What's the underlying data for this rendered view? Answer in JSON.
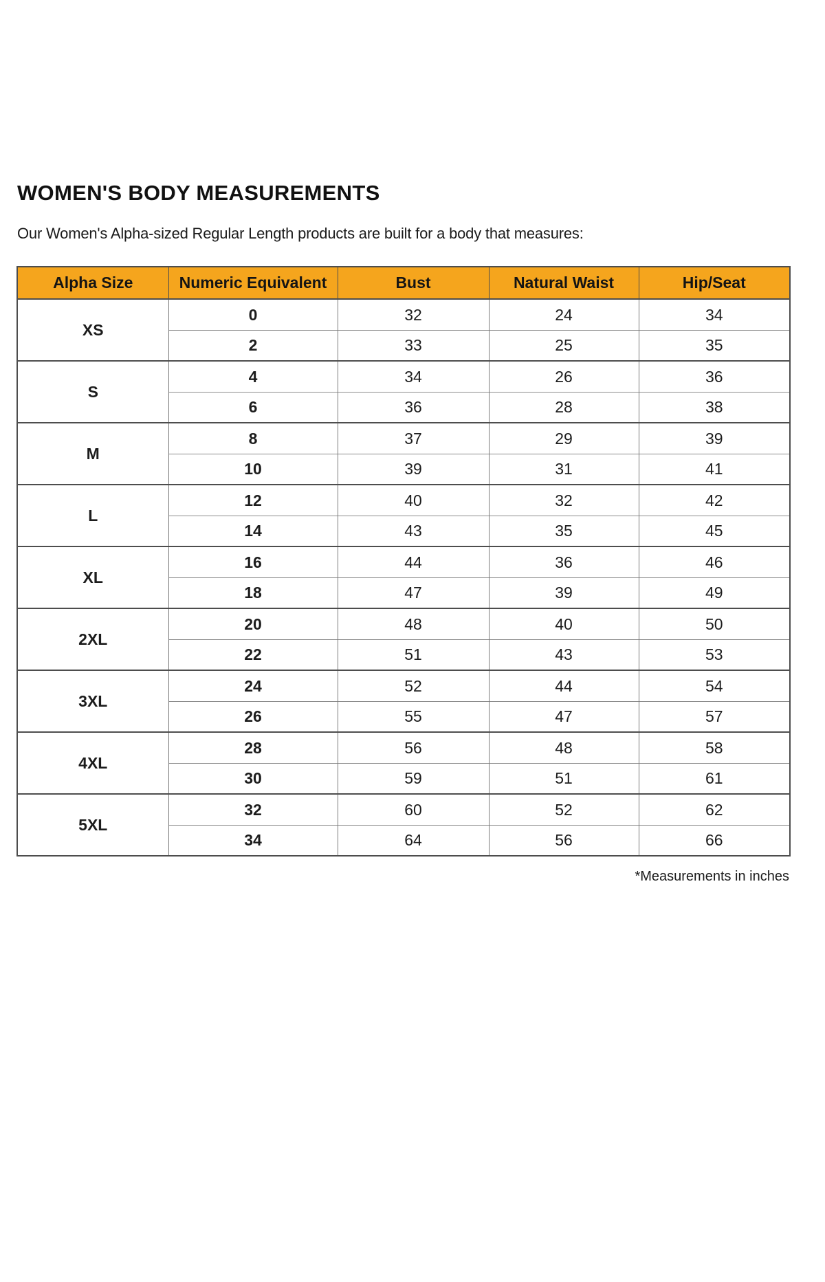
{
  "page": {
    "title": "WOMEN'S BODY MEASUREMENTS",
    "subtitle": "Our Women's Alpha-sized Regular Length products are built for a body that measures:",
    "footnote": "*Measurements in inches"
  },
  "colors": {
    "header_bg": "#F5A51D",
    "row_alt_bg": "#EFEFEF",
    "border_dark": "#4D4D4D",
    "border_light": "#8A8A8A",
    "text": "#1D1D1D"
  },
  "table": {
    "columns": [
      "Alpha Size",
      "Numeric Equivalent",
      "Bust",
      "Natural Waist",
      "Hip/Seat"
    ],
    "groups": [
      {
        "alpha": "XS",
        "rows": [
          {
            "numeric": "0",
            "bust": "32",
            "waist": "24",
            "hip": "34"
          },
          {
            "numeric": "2",
            "bust": "33",
            "waist": "25",
            "hip": "35"
          }
        ]
      },
      {
        "alpha": "S",
        "rows": [
          {
            "numeric": "4",
            "bust": "34",
            "waist": "26",
            "hip": "36"
          },
          {
            "numeric": "6",
            "bust": "36",
            "waist": "28",
            "hip": "38"
          }
        ]
      },
      {
        "alpha": "M",
        "rows": [
          {
            "numeric": "8",
            "bust": "37",
            "waist": "29",
            "hip": "39"
          },
          {
            "numeric": "10",
            "bust": "39",
            "waist": "31",
            "hip": "41"
          }
        ]
      },
      {
        "alpha": "L",
        "rows": [
          {
            "numeric": "12",
            "bust": "40",
            "waist": "32",
            "hip": "42"
          },
          {
            "numeric": "14",
            "bust": "43",
            "waist": "35",
            "hip": "45"
          }
        ]
      },
      {
        "alpha": "XL",
        "rows": [
          {
            "numeric": "16",
            "bust": "44",
            "waist": "36",
            "hip": "46"
          },
          {
            "numeric": "18",
            "bust": "47",
            "waist": "39",
            "hip": "49"
          }
        ]
      },
      {
        "alpha": "2XL",
        "rows": [
          {
            "numeric": "20",
            "bust": "48",
            "waist": "40",
            "hip": "50"
          },
          {
            "numeric": "22",
            "bust": "51",
            "waist": "43",
            "hip": "53"
          }
        ]
      },
      {
        "alpha": "3XL",
        "rows": [
          {
            "numeric": "24",
            "bust": "52",
            "waist": "44",
            "hip": "54"
          },
          {
            "numeric": "26",
            "bust": "55",
            "waist": "47",
            "hip": "57"
          }
        ]
      },
      {
        "alpha": "4XL",
        "rows": [
          {
            "numeric": "28",
            "bust": "56",
            "waist": "48",
            "hip": "58"
          },
          {
            "numeric": "30",
            "bust": "59",
            "waist": "51",
            "hip": "61"
          }
        ]
      },
      {
        "alpha": "5XL",
        "rows": [
          {
            "numeric": "32",
            "bust": "60",
            "waist": "52",
            "hip": "62"
          },
          {
            "numeric": "34",
            "bust": "64",
            "waist": "56",
            "hip": "66"
          }
        ]
      }
    ]
  }
}
